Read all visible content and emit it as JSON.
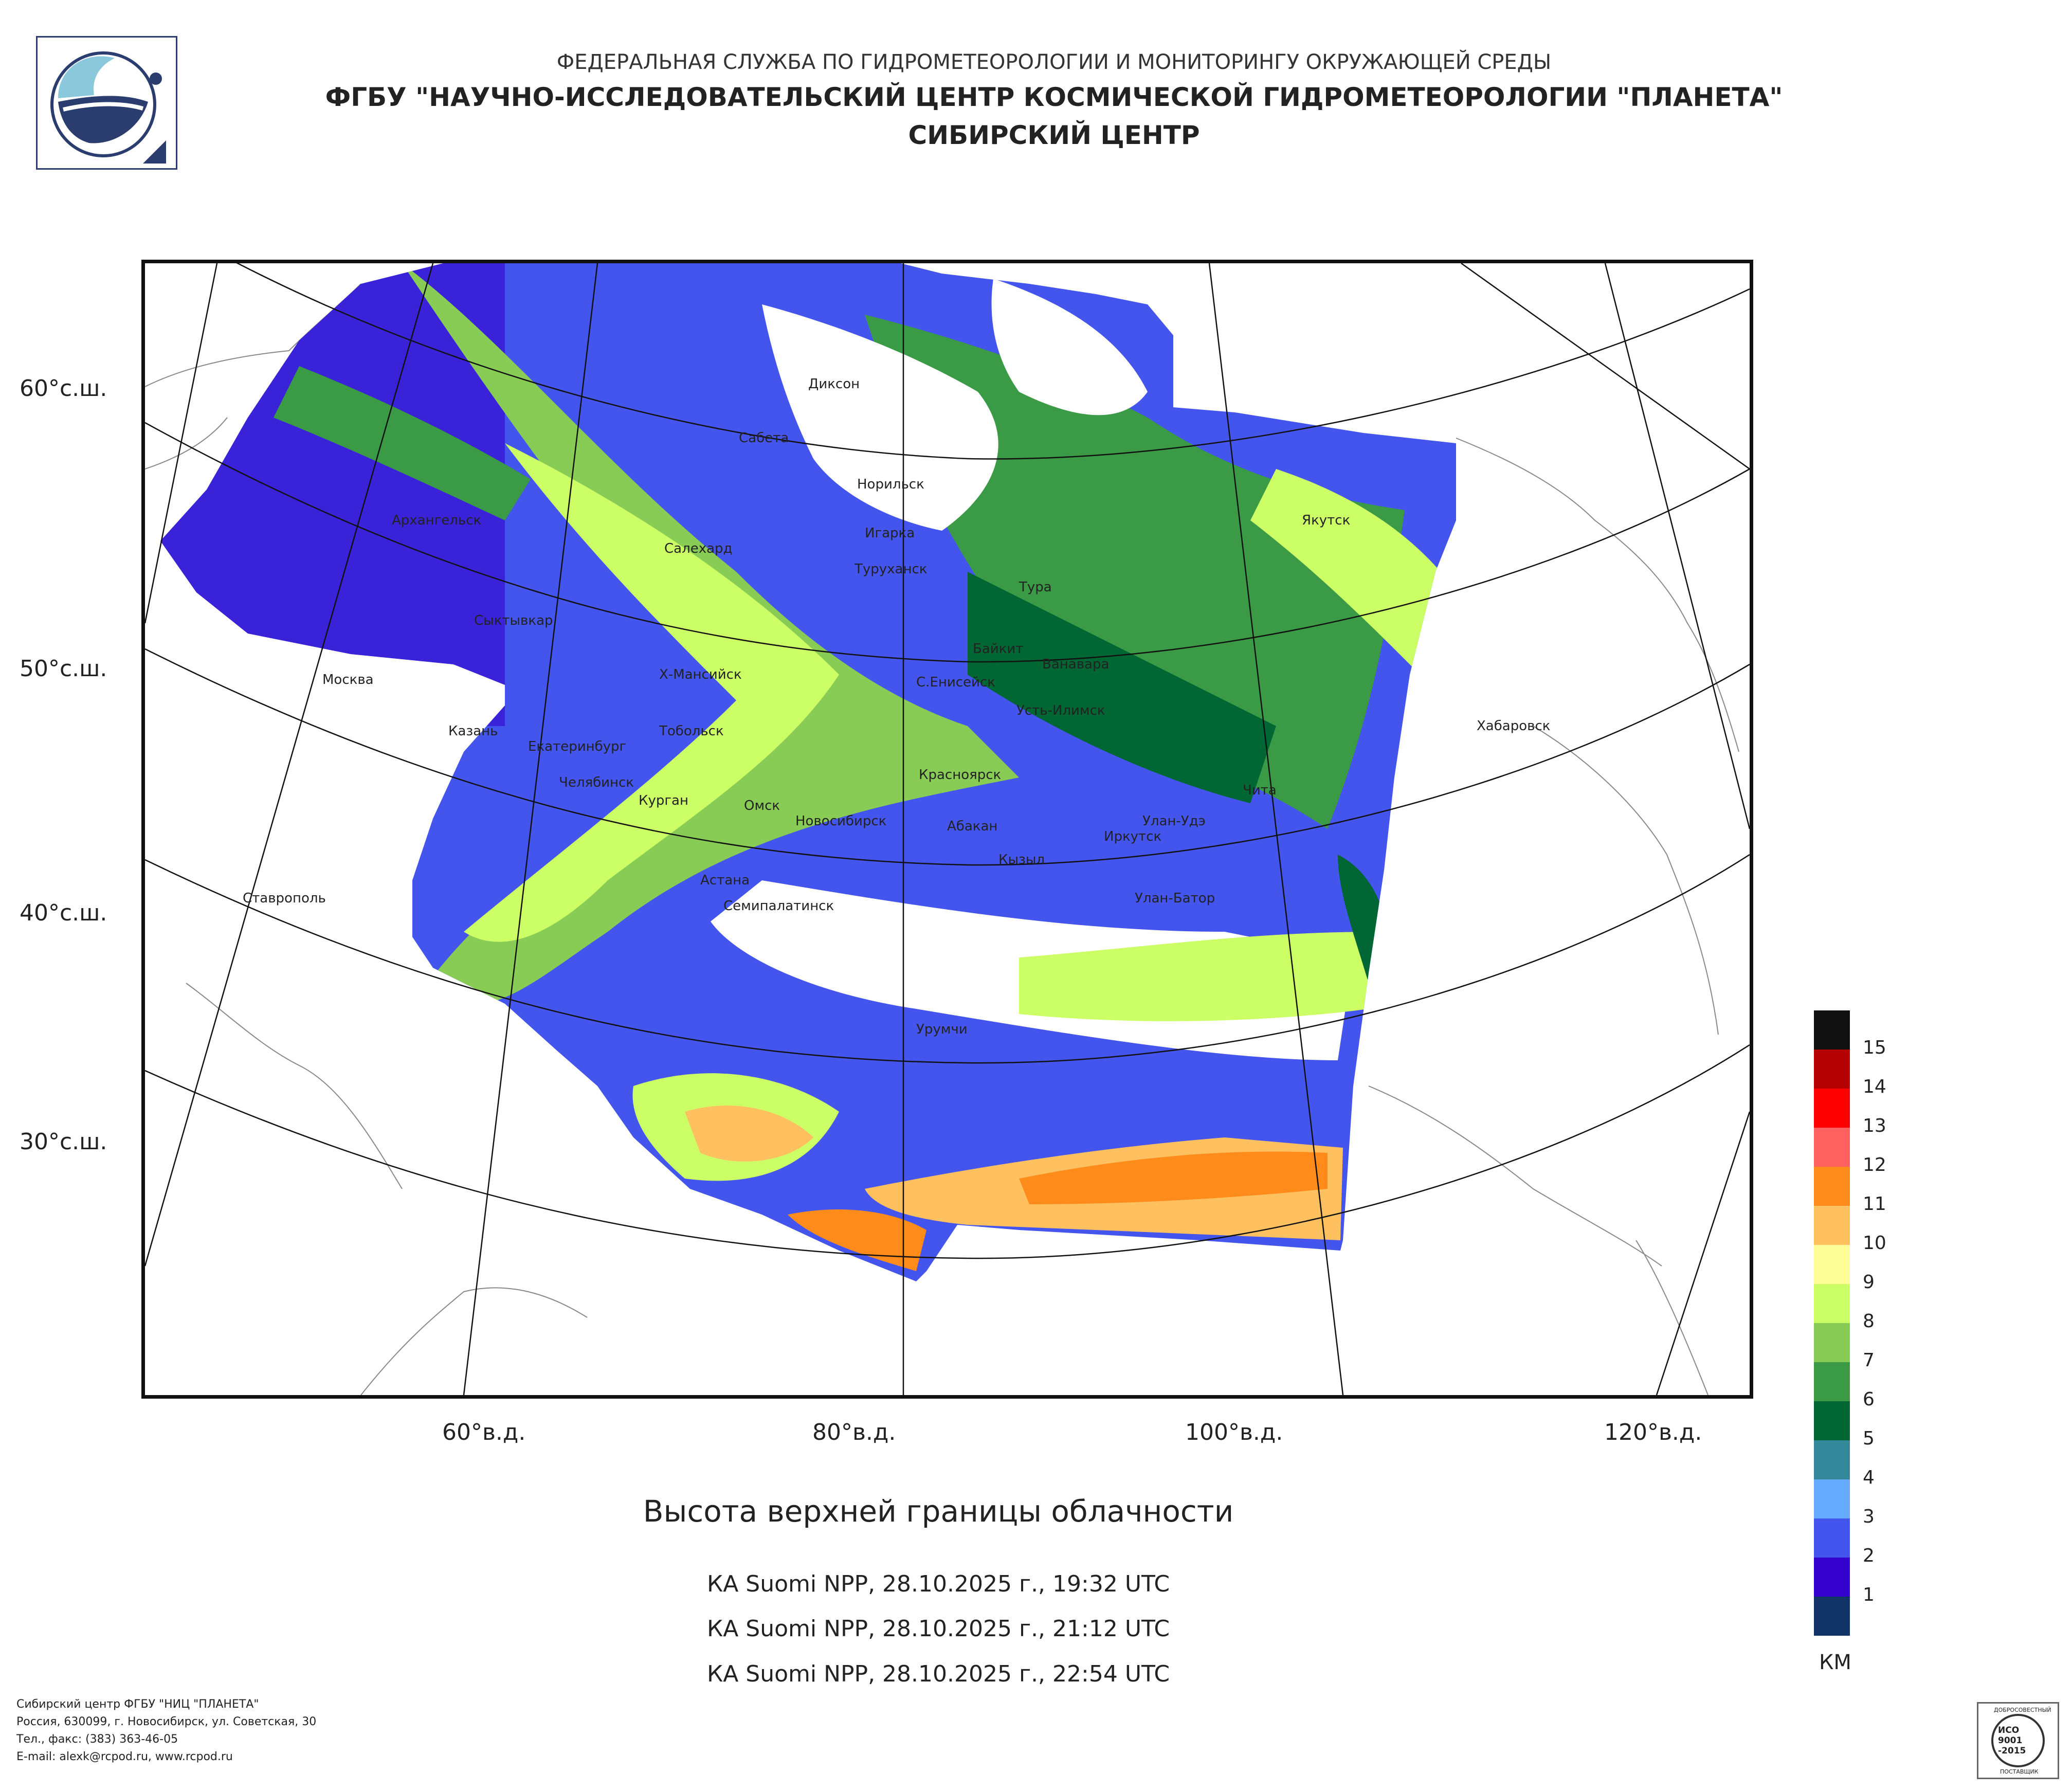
{
  "header": {
    "line1": "ФЕДЕРАЛЬНАЯ СЛУЖБА ПО ГИДРОМЕТЕОРОЛОГИИ И МОНИТОРИНГУ ОКРУЖАЮЩЕЙ СРЕДЫ",
    "line2": "ФГБУ \"НАУЧНО-ИССЛЕДОВАТЕЛЬСКИЙ ЦЕНТР КОСМИЧЕСКОЙ ГИДРОМЕТЕОРОЛОГИИ \"ПЛАНЕТА\"",
    "line3": "СИБИРСКИЙ ЦЕНТР"
  },
  "map": {
    "lat_labels": [
      "60°с.ш.",
      "50°с.ш.",
      "40°с.ш.",
      "30°с.ш."
    ],
    "lon_labels": [
      "60°в.д.",
      "80°в.д.",
      "100°в.д.",
      "120°в.д."
    ],
    "cities": [
      "Диксон",
      "Сабета",
      "Норильск",
      "Игарка",
      "Туруханск",
      "Салехард",
      "Архангельск",
      "Якутск",
      "Тура",
      "Сыктывкар",
      "Байкит",
      "Ванавара",
      "Москва",
      "Х-Мансийск",
      "С.Енисейск",
      "Усть-Илимск",
      "Хабаровск",
      "Казань",
      "Тобольск",
      "Екатеринбург",
      "Челябинск",
      "Курган",
      "Омск",
      "Новосибирск",
      "Красноярск",
      "Абакан",
      "Чита",
      "Улан-Удэ",
      "Иркутск",
      "Кызыл",
      "Астана",
      "Семипалатинск",
      "Улан-Батор",
      "Ставрополь",
      "Урумчи"
    ]
  },
  "title": "Высота верхней границы облачности",
  "passes": [
    "КА Suomi NPP, 28.10.2025 г., 19:32 UTC",
    "КА Suomi NPP, 28.10.2025 г., 21:12 UTC",
    "КА Suomi NPP, 28.10.2025 г., 22:54 UTC"
  ],
  "legend": {
    "unit": "КМ",
    "levels": [
      {
        "label": "15",
        "color": "#111111"
      },
      {
        "label": "14",
        "color": "#b50000"
      },
      {
        "label": "13",
        "color": "#ff0000"
      },
      {
        "label": "12",
        "color": "#ff6060"
      },
      {
        "label": "11",
        "color": "#ff8c1a"
      },
      {
        "label": "10",
        "color": "#ffc060"
      },
      {
        "label": "9",
        "color": "#ffff99"
      },
      {
        "label": "8",
        "color": "#ccff66"
      },
      {
        "label": "7",
        "color": "#88cc55"
      },
      {
        "label": "6",
        "color": "#3a9a45"
      },
      {
        "label": "5",
        "color": "#006633"
      },
      {
        "label": "4",
        "color": "#338899"
      },
      {
        "label": "3",
        "color": "#66aaff"
      },
      {
        "label": "2",
        "color": "#4455ee"
      },
      {
        "label": "1",
        "color": "#3300cc"
      },
      {
        "label": "",
        "color": "#123366"
      }
    ]
  },
  "footer": {
    "line1": "Сибирский центр ФГБУ \"НИЦ \"ПЛАНЕТА\"",
    "line2": "Россия, 630099, г. Новосибирск, ул. Советская, 30",
    "line3": "Тел., факс: (383) 363-46-05",
    "line4": "E-mail: alexk@rcpod.ru, www.rcpod.ru"
  },
  "iso_badge": {
    "top": "ДОБРОСОВЕСТНЫЙ",
    "l1": "ИСО",
    "l2": "9001",
    "l3": "-2015",
    "bottom": "ПОСТАВЩИК"
  }
}
